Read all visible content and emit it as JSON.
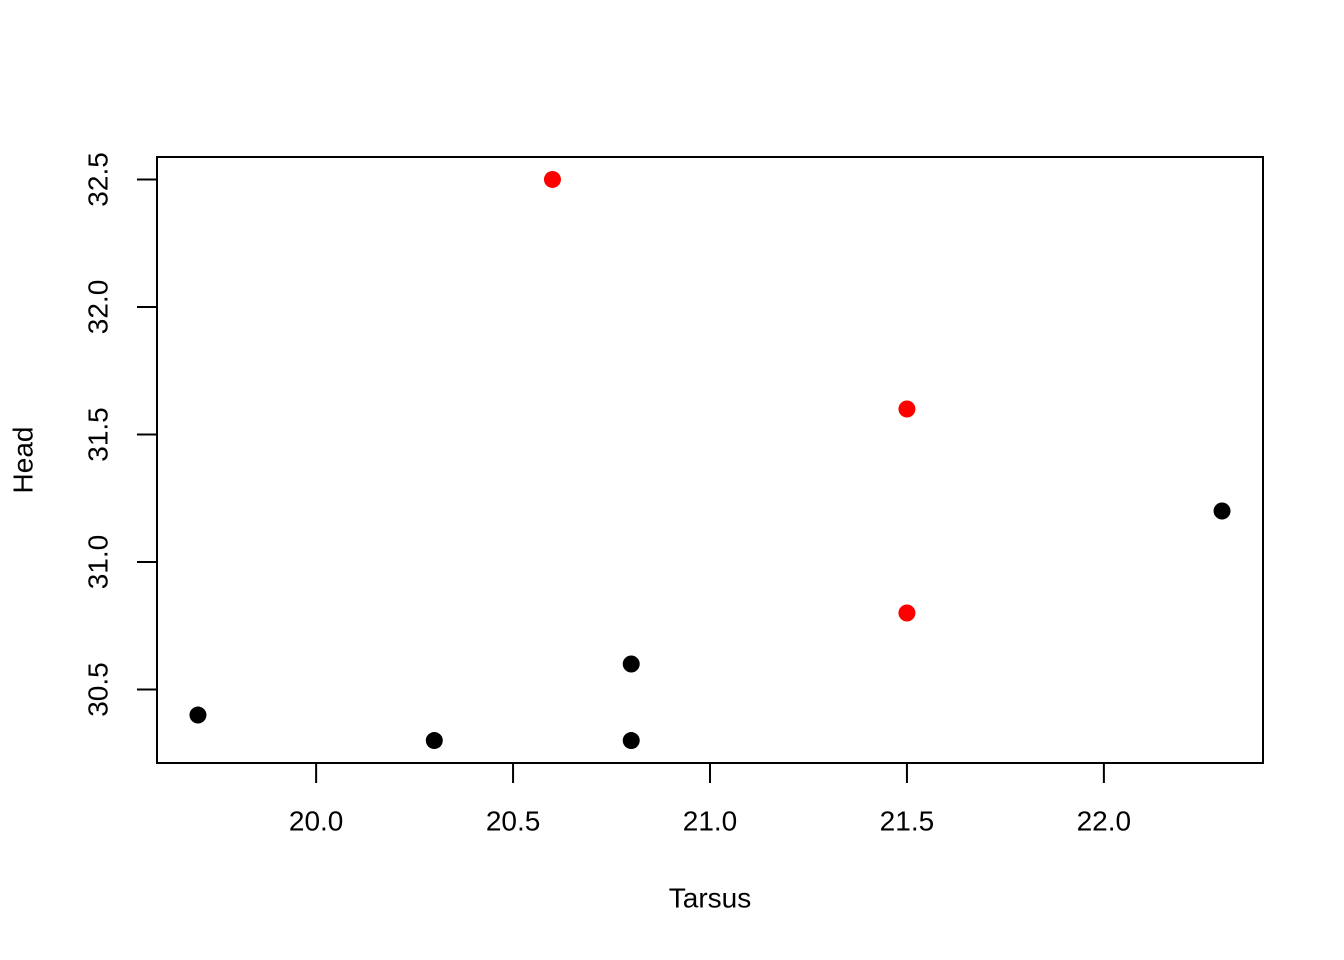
{
  "chart_data": {
    "type": "scatter",
    "x_label": "Tarsus",
    "y_label": "Head",
    "series": [
      {
        "color": "#000000",
        "x": [
          19.7,
          20.3,
          20.8,
          20.8,
          22.3
        ],
        "y": [
          30.4,
          30.3,
          30.3,
          30.6,
          31.2
        ]
      },
      {
        "color": "#ff0000",
        "x": [
          20.6,
          21.5,
          21.5
        ],
        "y": [
          32.5,
          31.6,
          30.8
        ]
      }
    ],
    "xlim": [
      19.596,
      22.404
    ],
    "ylim": [
      30.212,
      32.588
    ],
    "xticks": [
      {
        "value": 20,
        "label": "20.0"
      },
      20.5,
      {
        "value": 21,
        "label": "21.0"
      },
      21.5,
      {
        "value": 22,
        "label": "22.0"
      }
    ],
    "yticks": [
      {
        "value": 30.5,
        "label": "30.5"
      },
      {
        "value": 31,
        "label": "31.0"
      },
      {
        "value": 31.5,
        "label": "31.5"
      },
      {
        "value": 32,
        "label": "32.0"
      },
      {
        "value": 32.5,
        "label": "32.5"
      }
    ],
    "grid": false
  }
}
